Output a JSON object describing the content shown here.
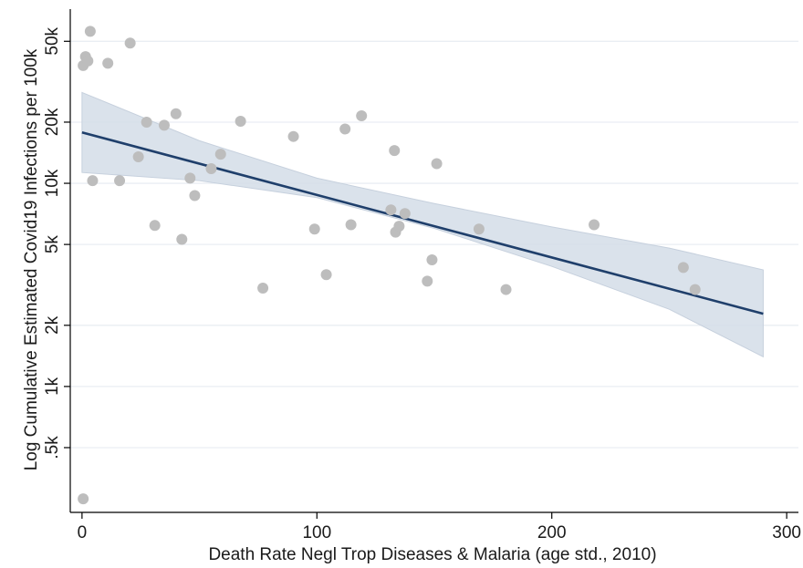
{
  "chart_data": {
    "type": "scatter",
    "title": "",
    "xlabel": "Death Rate Negl Trop Diseases & Malaria (age std., 2010)",
    "ylabel": "Log Cumulative Estimated Covid19 Infections per 100k",
    "xlim": [
      -5,
      305
    ],
    "ylim_log": [
      240,
      72000
    ],
    "y_scale": "log",
    "grid": true,
    "x_ticks": [
      {
        "value": 0,
        "label": "0"
      },
      {
        "value": 100,
        "label": "100"
      },
      {
        "value": 200,
        "label": "200"
      },
      {
        "value": 300,
        "label": "300"
      }
    ],
    "y_ticks": [
      {
        "value": 500,
        "label": ".5k"
      },
      {
        "value": 1000,
        "label": "1k"
      },
      {
        "value": 2000,
        "label": "2k"
      },
      {
        "value": 5000,
        "label": "5k"
      },
      {
        "value": 10000,
        "label": "10k"
      },
      {
        "value": 20000,
        "label": "20k"
      },
      {
        "value": 50000,
        "label": "50k"
      }
    ],
    "points": [
      {
        "x": 0.5,
        "y": 38000
      },
      {
        "x": 1.5,
        "y": 42000
      },
      {
        "x": 2.5,
        "y": 40000
      },
      {
        "x": 3.5,
        "y": 56000
      },
      {
        "x": 4.5,
        "y": 10300
      },
      {
        "x": 11,
        "y": 39000
      },
      {
        "x": 16,
        "y": 10300
      },
      {
        "x": 20.5,
        "y": 49000
      },
      {
        "x": 24,
        "y": 13500
      },
      {
        "x": 27.5,
        "y": 20000
      },
      {
        "x": 31,
        "y": 6200
      },
      {
        "x": 35,
        "y": 19300
      },
      {
        "x": 40,
        "y": 22000
      },
      {
        "x": 42.5,
        "y": 5300
      },
      {
        "x": 46,
        "y": 10600
      },
      {
        "x": 48,
        "y": 8700
      },
      {
        "x": 55,
        "y": 11800
      },
      {
        "x": 59,
        "y": 13900
      },
      {
        "x": 67.5,
        "y": 20200
      },
      {
        "x": 77,
        "y": 3050
      },
      {
        "x": 90,
        "y": 17000
      },
      {
        "x": 99,
        "y": 5950
      },
      {
        "x": 104,
        "y": 3550
      },
      {
        "x": 112,
        "y": 18500
      },
      {
        "x": 114.5,
        "y": 6250
      },
      {
        "x": 119,
        "y": 21500
      },
      {
        "x": 131.5,
        "y": 7400
      },
      {
        "x": 133,
        "y": 14500
      },
      {
        "x": 133.5,
        "y": 5750
      },
      {
        "x": 135,
        "y": 6150
      },
      {
        "x": 137.5,
        "y": 7100
      },
      {
        "x": 147,
        "y": 3300
      },
      {
        "x": 149,
        "y": 4200
      },
      {
        "x": 151,
        "y": 12500
      },
      {
        "x": 169,
        "y": 5950
      },
      {
        "x": 180.5,
        "y": 3000
      },
      {
        "x": 218,
        "y": 6250
      },
      {
        "x": 256,
        "y": 3850
      },
      {
        "x": 261,
        "y": 3000
      },
      {
        "x": 0.5,
        "y": 280
      }
    ],
    "fit_line": {
      "x": [
        0,
        290
      ],
      "y": [
        17800,
        2280
      ]
    },
    "ci_band": {
      "x": [
        0,
        50,
        100,
        150,
        200,
        250,
        290
      ],
      "lower": [
        11300,
        10300,
        8500,
        6000,
        3900,
        2400,
        1400
      ],
      "upper": [
        28000,
        16200,
        10600,
        7950,
        6100,
        4800,
        3750
      ]
    },
    "colors": {
      "points": "#bdbdbd",
      "fit_line": "#1f3f6b",
      "ci_fill": "#d4dde8",
      "ci_stroke": "#c6d0dd",
      "grid": "#eaeef3",
      "axis": "#000000"
    }
  }
}
